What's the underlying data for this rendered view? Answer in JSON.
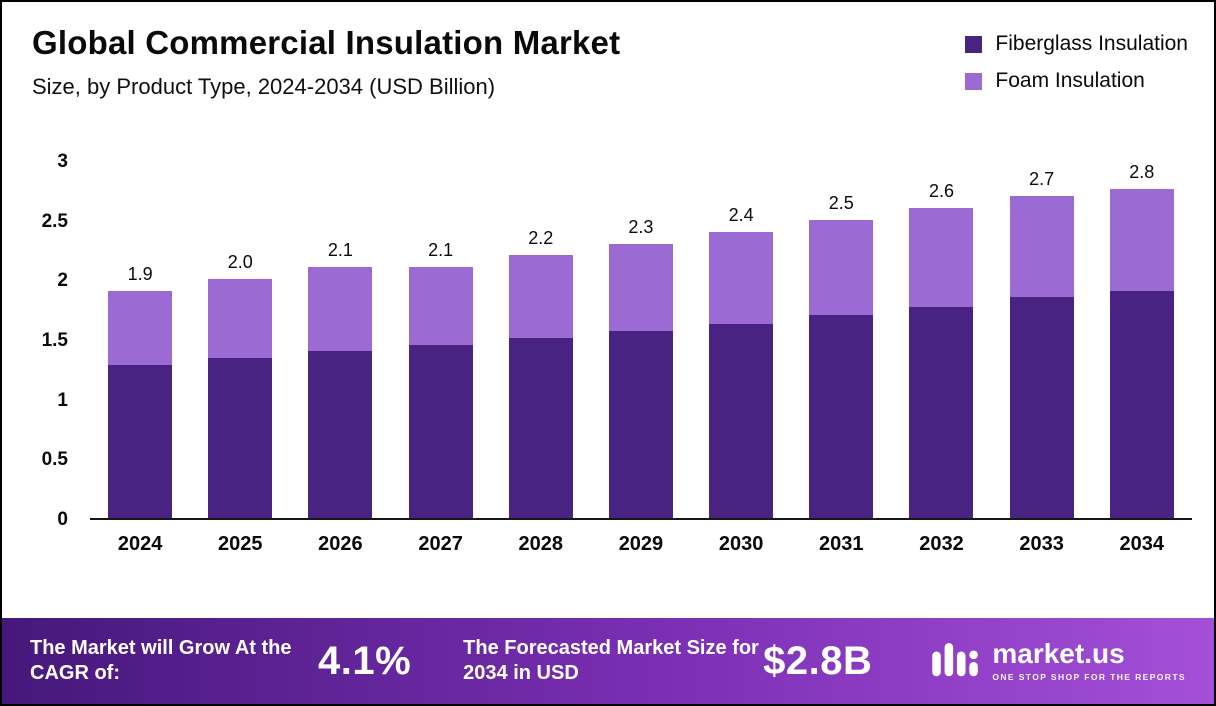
{
  "header": {
    "title": "Global Commercial Insulation Market",
    "subtitle": "Size, by Product Type, 2024-2034 (USD Billion)"
  },
  "legend": [
    {
      "label": "Fiberglass Insulation",
      "color": "#482381"
    },
    {
      "label": "Foam Insulation",
      "color": "#9c6ad3"
    }
  ],
  "chart_data": {
    "type": "bar",
    "stacked": true,
    "title": "Global Commercial Insulation Market Size, by Product Type, 2024-2034 (USD Billion)",
    "categories": [
      "2024",
      "2025",
      "2026",
      "2027",
      "2028",
      "2029",
      "2030",
      "2031",
      "2032",
      "2033",
      "2034"
    ],
    "series": [
      {
        "name": "Fiberglass Insulation",
        "color": "#482381",
        "values": [
          1.28,
          1.34,
          1.4,
          1.45,
          1.51,
          1.57,
          1.63,
          1.7,
          1.77,
          1.85,
          1.93
        ]
      },
      {
        "name": "Foam Insulation",
        "color": "#9c6ad3",
        "values": [
          0.62,
          0.66,
          0.7,
          0.65,
          0.69,
          0.73,
          0.77,
          0.8,
          0.83,
          0.85,
          0.87
        ]
      }
    ],
    "totals": [
      1.9,
      2.0,
      2.1,
      2.1,
      2.2,
      2.3,
      2.4,
      2.5,
      2.6,
      2.7,
      2.8
    ],
    "xlabel": "",
    "ylabel": "",
    "ylim": [
      0,
      3
    ],
    "yticks": [
      0,
      0.5,
      1,
      1.5,
      2,
      2.5,
      3
    ],
    "grid": false,
    "legend_position": "top-right"
  },
  "footer": {
    "cagr_label": "The Market will Grow At the CAGR of:",
    "cagr_value": "4.1%",
    "forecast_label": "The Forecasted Market Size for 2034 in USD",
    "forecast_value": "$2.8B",
    "brand": "market.us",
    "brand_tagline": "ONE STOP SHOP FOR THE REPORTS"
  }
}
